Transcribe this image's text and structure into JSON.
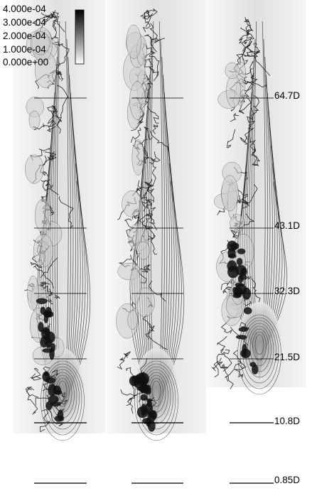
{
  "colorbar": {
    "labels": [
      "4.000e-04",
      "3.000e-04",
      "2.000e-04",
      "1.000e-04",
      "0.000e+00"
    ],
    "max_color": "#000000",
    "min_color": "#ffffff"
  },
  "distance_labels": [
    "64.7D",
    "43.1D",
    "32.3D",
    "21.5D",
    "10.8D",
    "0.85D"
  ],
  "panel_count": 3,
  "colors": {
    "background": "#ffffff",
    "plume_far": "#cfcfcf",
    "plume_core": "#111111",
    "contour_line": "#1a1a1a",
    "reference_line": "#000000"
  }
}
